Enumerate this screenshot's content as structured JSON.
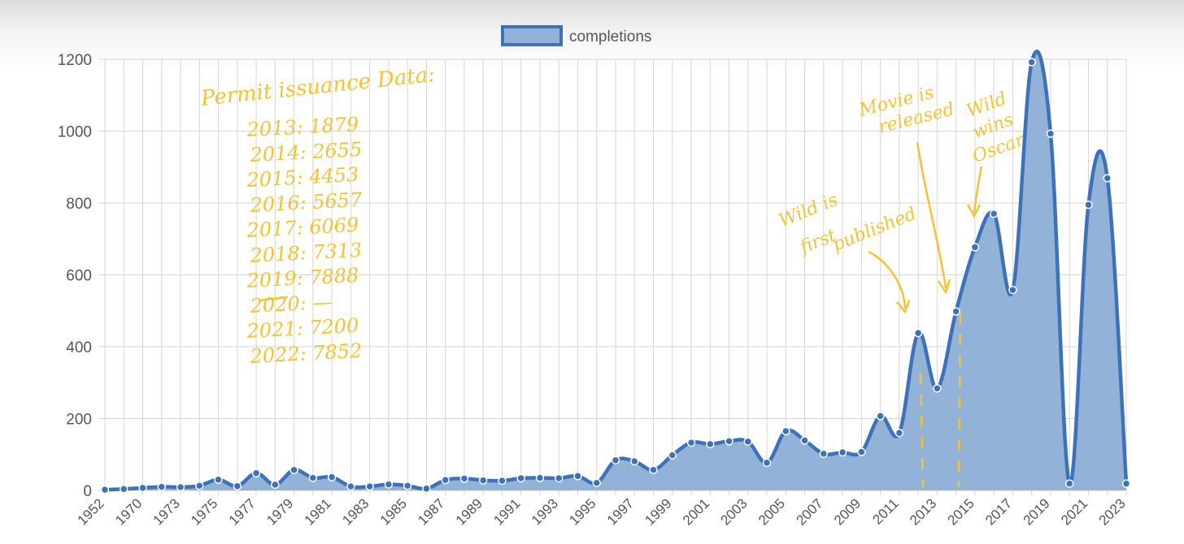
{
  "chart_data": {
    "type": "line",
    "filled": true,
    "categories": [
      "1952",
      "1969",
      "1970",
      "1972",
      "1973",
      "1974",
      "1975",
      "1976",
      "1977",
      "1978",
      "1979",
      "1980",
      "1981",
      "1982",
      "1983",
      "1984",
      "1985",
      "1986",
      "1987",
      "1988",
      "1989",
      "1990",
      "1991",
      "1992",
      "1993",
      "1994",
      "1995",
      "1996",
      "1997",
      "1998",
      "1999",
      "2000",
      "2001",
      "2002",
      "2003",
      "2004",
      "2005",
      "2006",
      "2007",
      "2008",
      "2009",
      "2010",
      "2011",
      "2012",
      "2013",
      "2014",
      "2015",
      "2016",
      "2017",
      "2018",
      "2019",
      "2020",
      "2021",
      "2022",
      "2023"
    ],
    "tick_labels": [
      "1952",
      "1970",
      "1973",
      "1975",
      "1977",
      "1979",
      "1981",
      "1983",
      "1985",
      "1987",
      "1989",
      "1991",
      "1993",
      "1995",
      "1997",
      "1999",
      "2001",
      "2003",
      "2005",
      "2007",
      "2009",
      "2011",
      "2013",
      "2015",
      "2017",
      "2019",
      "2021",
      "2023"
    ],
    "series": [
      {
        "name": "completions",
        "values": [
          2,
          4,
          7,
          10,
          9,
          13,
          30,
          12,
          48,
          16,
          57,
          35,
          37,
          11,
          11,
          17,
          13,
          5,
          29,
          33,
          28,
          27,
          34,
          35,
          34,
          40,
          21,
          84,
          81,
          57,
          98,
          133,
          129,
          137,
          136,
          77,
          165,
          139,
          102,
          106,
          107,
          207,
          160,
          438,
          284,
          498,
          677,
          770,
          558,
          1192,
          993,
          19,
          795,
          869,
          19
        ],
        "color": "#3e72b8",
        "fill": "#93b2d7"
      }
    ],
    "ylim": [
      0,
      1200
    ],
    "yticks": [
      0,
      200,
      400,
      600,
      800,
      1000,
      1200
    ],
    "grid": true,
    "legend": "top"
  },
  "annotations": {
    "permit_title": "Permit issuance Data:",
    "permit_lines": [
      "2013: 1879",
      "2014: 2655",
      "2015: 4453",
      "2016: 5657",
      "2017: 6069",
      "2018: 7313",
      "2019: 7888",
      "2020: —",
      "2021: 7200",
      "2022: 7852"
    ],
    "wild_published": [
      "Wild is",
      "first",
      "published"
    ],
    "movie_released": [
      "Movie is",
      "released"
    ],
    "wild_oscar": [
      "Wild",
      "wins",
      "Oscar"
    ]
  }
}
